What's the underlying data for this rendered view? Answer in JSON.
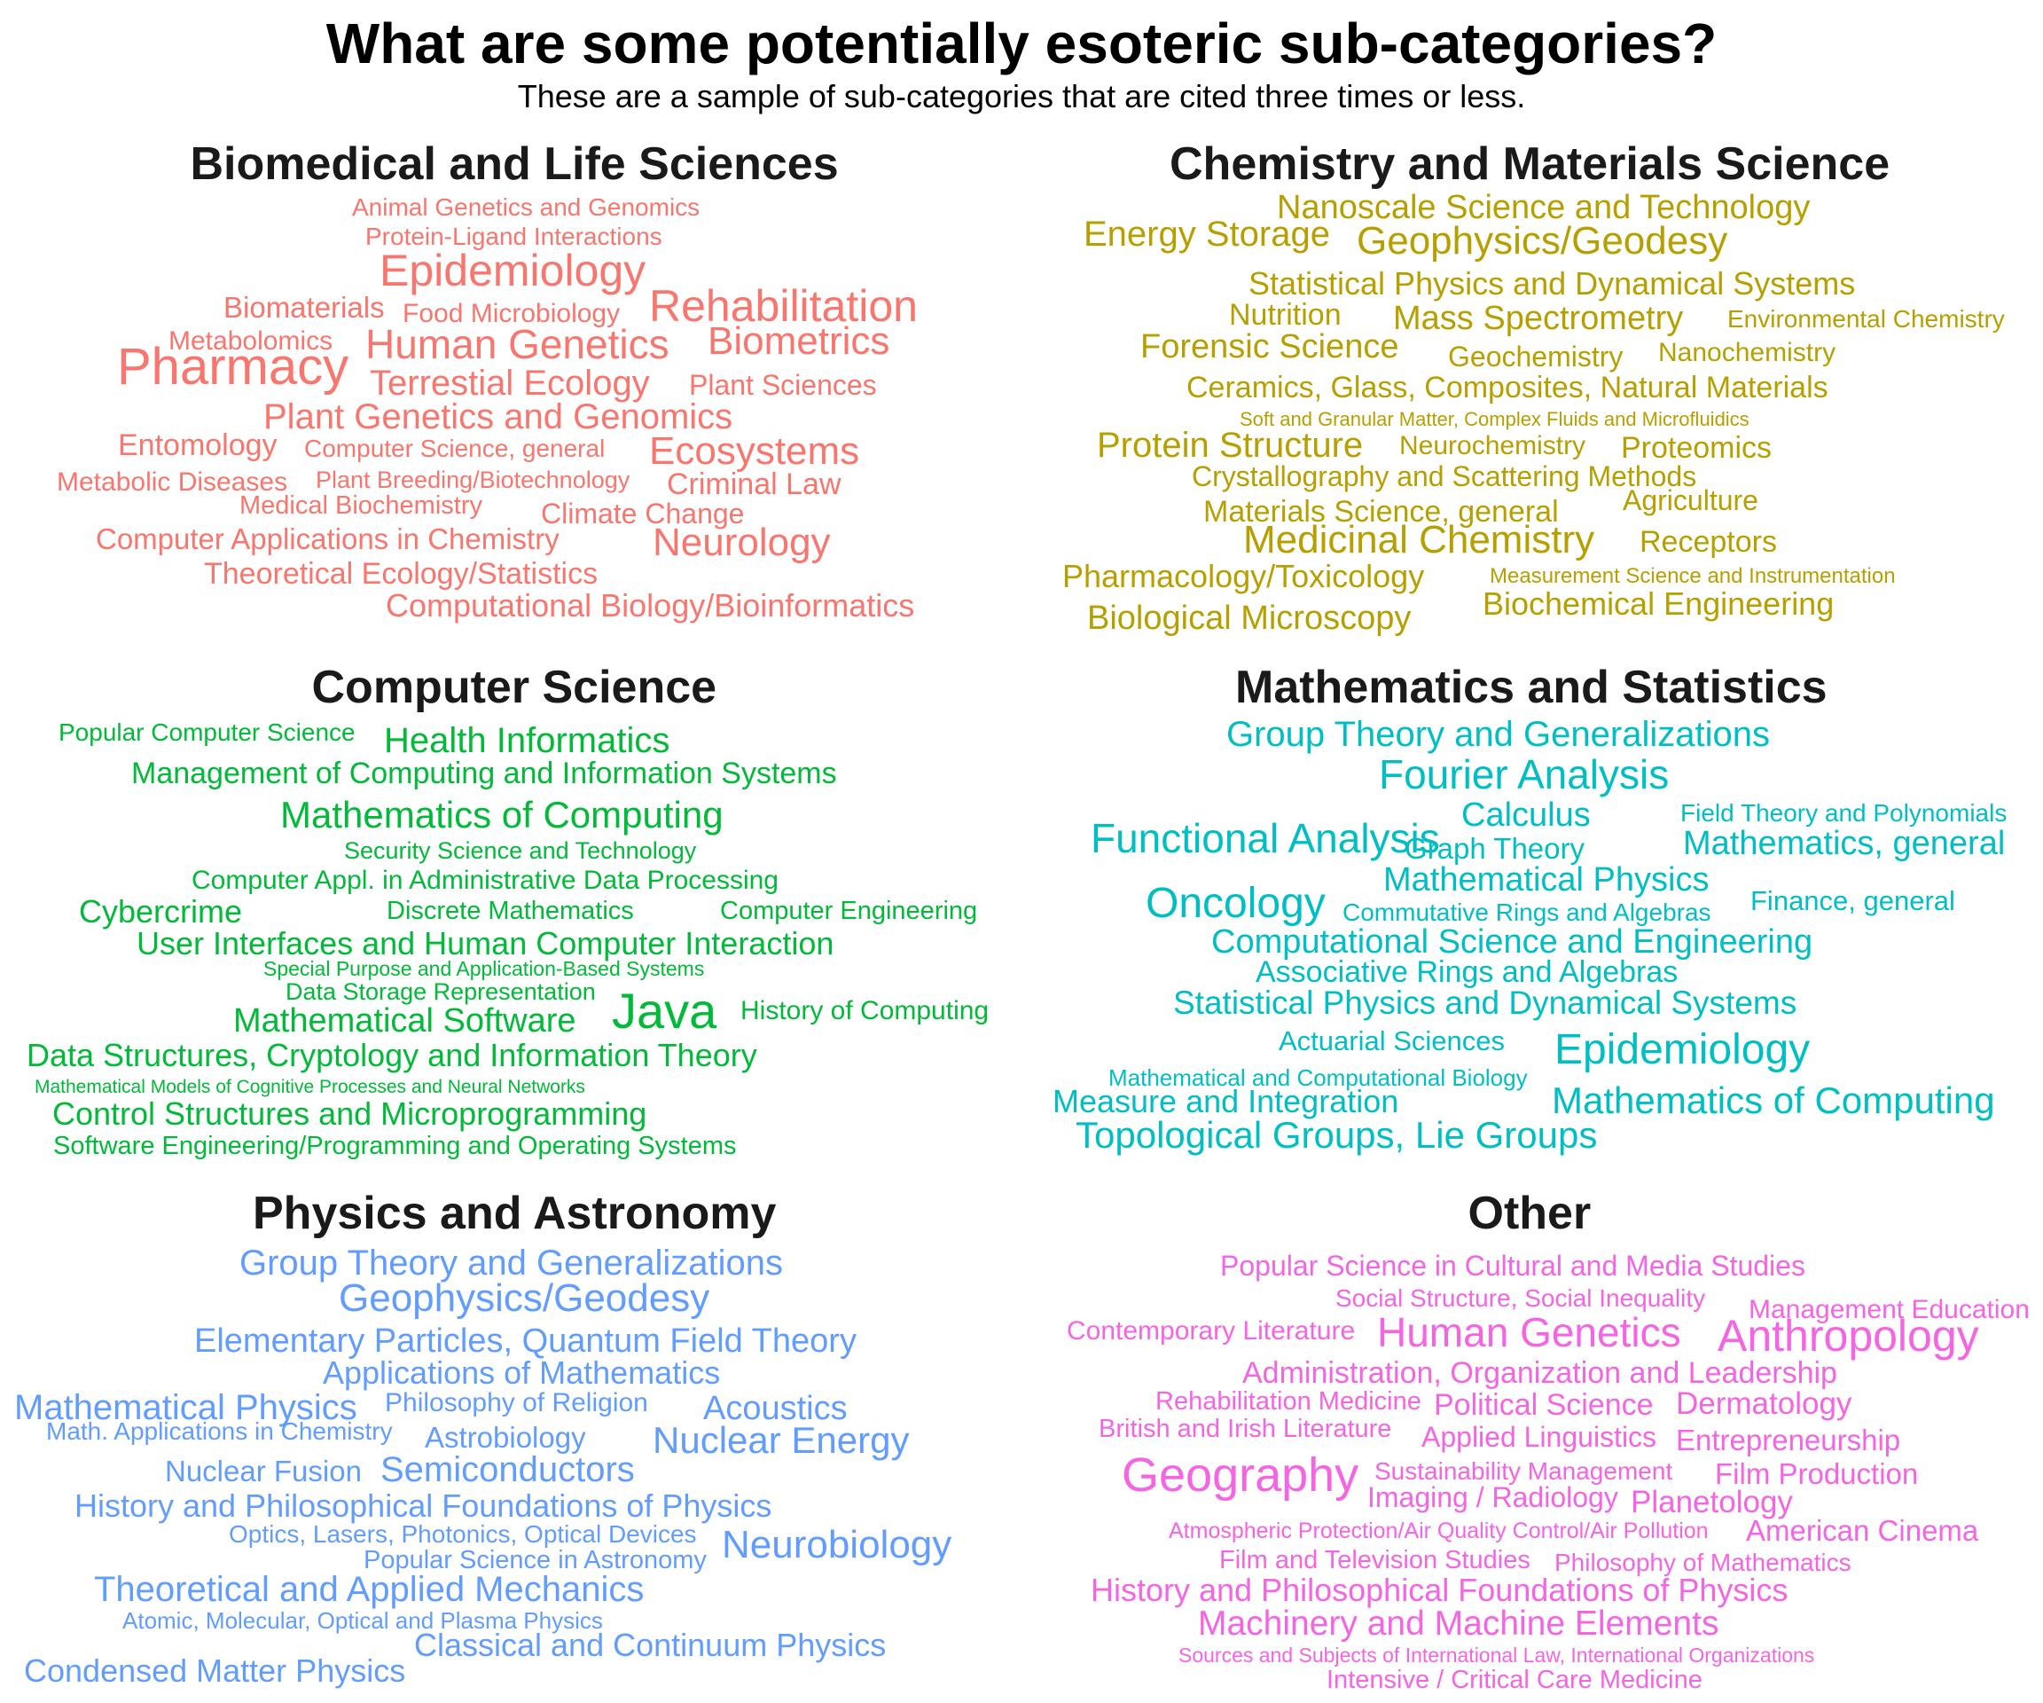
{
  "title": "What are some potentially esoteric sub-categories?",
  "subtitle": "These are a sample of sub-categories that are cited three times or less.",
  "chart_data": {
    "type": "wordcloud",
    "panels": [
      {
        "name": "Biomedical and Life Sciences",
        "color": "#F8766D",
        "words": [
          {
            "text": "Animal Genetics and Genomics",
            "size": 28
          },
          {
            "text": "Protein-Ligand Interactions",
            "size": 28
          },
          {
            "text": "Epidemiology",
            "size": 50
          },
          {
            "text": "Rehabilitation",
            "size": 50
          },
          {
            "text": "Biomaterials",
            "size": 33
          },
          {
            "text": "Food Microbiology",
            "size": 30
          },
          {
            "text": "Metabolomics",
            "size": 30
          },
          {
            "text": "Human Genetics",
            "size": 46
          },
          {
            "text": "Biometrics",
            "size": 44
          },
          {
            "text": "Pharmacy",
            "size": 58
          },
          {
            "text": "Terrestial Ecology",
            "size": 40
          },
          {
            "text": "Plant Sciences",
            "size": 32
          },
          {
            "text": "Plant Genetics and Genomics",
            "size": 40
          },
          {
            "text": "Entomology",
            "size": 34
          },
          {
            "text": "Computer Science, general",
            "size": 28
          },
          {
            "text": "Ecosystems",
            "size": 44
          },
          {
            "text": "Metabolic Diseases",
            "size": 30
          },
          {
            "text": "Plant Breeding/Biotechnology",
            "size": 27
          },
          {
            "text": "Criminal Law",
            "size": 34
          },
          {
            "text": "Medical Biochemistry",
            "size": 29
          },
          {
            "text": "Climate Change",
            "size": 32
          },
          {
            "text": "Computer Applications in Chemistry",
            "size": 33
          },
          {
            "text": "Neurology",
            "size": 44
          },
          {
            "text": "Theoretical Ecology/Statistics",
            "size": 34
          },
          {
            "text": "Computational Biology/Bioinformatics",
            "size": 36
          }
        ]
      },
      {
        "name": "Chemistry and Materials Science",
        "color": "#B79F00",
        "words": [
          {
            "text": "Nanoscale Science and Technology",
            "size": 38
          },
          {
            "text": "Energy Storage",
            "size": 40
          },
          {
            "text": "Geophysics/Geodesy",
            "size": 44
          },
          {
            "text": "Statistical Physics and Dynamical Systems",
            "size": 36
          },
          {
            "text": "Nutrition",
            "size": 34
          },
          {
            "text": "Mass Spectrometry",
            "size": 38
          },
          {
            "text": "Environmental Chemistry",
            "size": 28
          },
          {
            "text": "Forensic Science",
            "size": 38
          },
          {
            "text": "Geochemistry",
            "size": 32
          },
          {
            "text": "Nanochemistry",
            "size": 30
          },
          {
            "text": "Ceramics, Glass, Composites, Natural Materials",
            "size": 34
          },
          {
            "text": "Soft and Granular Matter, Complex Fluids and Microfluidics",
            "size": 22
          },
          {
            "text": "Protein Structure",
            "size": 40
          },
          {
            "text": "Neurochemistry",
            "size": 30
          },
          {
            "text": "Proteomics",
            "size": 34
          },
          {
            "text": "Crystallography and Scattering Methods",
            "size": 32
          },
          {
            "text": "Materials Science, general",
            "size": 34
          },
          {
            "text": "Agriculture",
            "size": 32
          },
          {
            "text": "Medicinal Chemistry",
            "size": 44
          },
          {
            "text": "Receptors",
            "size": 34
          },
          {
            "text": "Pharmacology/Toxicology",
            "size": 36
          },
          {
            "text": "Measurement Science and Instrumentation",
            "size": 24
          },
          {
            "text": "Biochemical Engineering",
            "size": 36
          },
          {
            "text": "Biological Microscopy",
            "size": 38
          }
        ]
      },
      {
        "name": "Computer Science",
        "color": "#00BA38",
        "words": [
          {
            "text": "Popular Computer Science",
            "size": 28
          },
          {
            "text": "Health Informatics",
            "size": 40
          },
          {
            "text": "Management of Computing and Information Systems",
            "size": 34
          },
          {
            "text": "Mathematics of Computing",
            "size": 42
          },
          {
            "text": "Security Science and Technology",
            "size": 27
          },
          {
            "text": "Computer Appl. in Administrative Data Processing",
            "size": 30
          },
          {
            "text": "Cybercrime",
            "size": 36
          },
          {
            "text": "Discrete Mathematics",
            "size": 29
          },
          {
            "text": "Computer Engineering",
            "size": 29
          },
          {
            "text": "User Interfaces and Human Computer Interaction",
            "size": 36
          },
          {
            "text": "Special Purpose and Application-Based Systems",
            "size": 23
          },
          {
            "text": "Data Storage Representation",
            "size": 27
          },
          {
            "text": "Mathematical Software",
            "size": 38
          },
          {
            "text": "Java",
            "size": 56
          },
          {
            "text": "History of Computing",
            "size": 30
          },
          {
            "text": "Data Structures, Cryptology and Information Theory",
            "size": 36
          },
          {
            "text": "Mathematical Models of Cognitive Processes and Neural Networks",
            "size": 21
          },
          {
            "text": "Control Structures and Microprogramming",
            "size": 36
          },
          {
            "text": "Software Engineering/Programming and Operating Systems",
            "size": 29
          }
        ]
      },
      {
        "name": "Mathematics and Statistics",
        "color": "#00BFC4",
        "words": [
          {
            "text": "Group Theory and Generalizations",
            "size": 40
          },
          {
            "text": "Fourier Analysis",
            "size": 46
          },
          {
            "text": "Calculus",
            "size": 38
          },
          {
            "text": "Field Theory and Polynomials",
            "size": 28
          },
          {
            "text": "Functional Analysis",
            "size": 46
          },
          {
            "text": "Graph Theory",
            "size": 33
          },
          {
            "text": "Mathematics, general",
            "size": 38
          },
          {
            "text": "Mathematical Physics",
            "size": 38
          },
          {
            "text": "Oncology",
            "size": 48
          },
          {
            "text": "Commutative Rings and Algebras",
            "size": 28
          },
          {
            "text": "Finance, general",
            "size": 31
          },
          {
            "text": "Computational Science and Engineering",
            "size": 38
          },
          {
            "text": "Associative Rings and Algebras",
            "size": 34
          },
          {
            "text": "Statistical Physics and Dynamical Systems",
            "size": 37
          },
          {
            "text": "Actuarial Sciences",
            "size": 31
          },
          {
            "text": "Epidemiology",
            "size": 48
          },
          {
            "text": "Mathematical and Computational Biology",
            "size": 26
          },
          {
            "text": "Measure and Integration",
            "size": 36
          },
          {
            "text": "Mathematics of Computing",
            "size": 42
          },
          {
            "text": "Topological Groups, Lie Groups",
            "size": 42
          }
        ]
      },
      {
        "name": "Physics and Astronomy",
        "color": "#619CFF",
        "words": [
          {
            "text": "Group Theory and Generalizations",
            "size": 40
          },
          {
            "text": "Geophysics/Geodesy",
            "size": 44
          },
          {
            "text": "Elementary Particles, Quantum Field Theory",
            "size": 38
          },
          {
            "text": "Applications of Mathematics",
            "size": 36
          },
          {
            "text": "Mathematical Physics",
            "size": 40
          },
          {
            "text": "Philosophy of Religion",
            "size": 30
          },
          {
            "text": "Acoustics",
            "size": 38
          },
          {
            "text": "Math. Applications in Chemistry",
            "size": 28
          },
          {
            "text": "Astrobiology",
            "size": 33
          },
          {
            "text": "Nuclear Energy",
            "size": 42
          },
          {
            "text": "Nuclear Fusion",
            "size": 33
          },
          {
            "text": "Semiconductors",
            "size": 40
          },
          {
            "text": "History and Philosophical Foundations of Physics",
            "size": 36
          },
          {
            "text": "Optics, Lasers, Photonics, Optical Devices",
            "size": 28
          },
          {
            "text": "Popular Science in Astronomy",
            "size": 29
          },
          {
            "text": "Neurobiology",
            "size": 44
          },
          {
            "text": "Theoretical and Applied Mechanics",
            "size": 40
          },
          {
            "text": "Atomic, Molecular, Optical and Plasma Physics",
            "size": 26
          },
          {
            "text": "Classical and Continuum Physics",
            "size": 36
          },
          {
            "text": "Condensed Matter Physics",
            "size": 36
          }
        ]
      },
      {
        "name": "Other",
        "color": "#F564E3",
        "words": [
          {
            "text": "Popular Science in Cultural and Media Studies",
            "size": 32
          },
          {
            "text": "Social Structure, Social Inequality",
            "size": 28
          },
          {
            "text": "Management Education",
            "size": 30
          },
          {
            "text": "Contemporary Literature",
            "size": 30
          },
          {
            "text": "Human Genetics",
            "size": 46
          },
          {
            "text": "Anthropology",
            "size": 50
          },
          {
            "text": "Administration, Organization and Leadership",
            "size": 34
          },
          {
            "text": "Rehabilitation Medicine",
            "size": 29
          },
          {
            "text": "Political Science",
            "size": 34
          },
          {
            "text": "Dermatology",
            "size": 35
          },
          {
            "text": "British and Irish Literature",
            "size": 29
          },
          {
            "text": "Applied Linguistics",
            "size": 32
          },
          {
            "text": "Entrepreneurship",
            "size": 33
          },
          {
            "text": "Geography",
            "size": 54
          },
          {
            "text": "Sustainability Management",
            "size": 28
          },
          {
            "text": "Film Production",
            "size": 33
          },
          {
            "text": "Imaging / Radiology",
            "size": 32
          },
          {
            "text": "Planetology",
            "size": 35
          },
          {
            "text": "Atmospheric Protection/Air Quality Control/Air Pollution",
            "size": 25
          },
          {
            "text": "American Cinema",
            "size": 33
          },
          {
            "text": "Film and Television Studies",
            "size": 29
          },
          {
            "text": "Philosophy of Mathematics",
            "size": 28
          },
          {
            "text": "History and Philosophical Foundations of Physics",
            "size": 36
          },
          {
            "text": "Machinery and Machine Elements",
            "size": 39
          },
          {
            "text": "Sources and Subjects of International Law, International Organizations",
            "size": 23
          },
          {
            "text": "Intensive / Critical Care Medicine",
            "size": 29
          }
        ]
      }
    ]
  }
}
